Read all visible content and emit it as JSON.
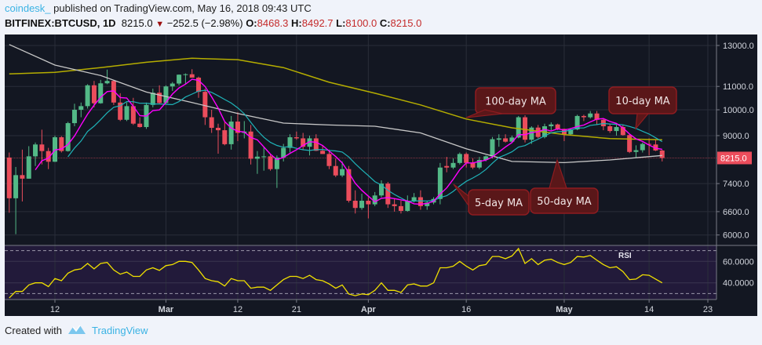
{
  "header": {
    "user": "coindesk_",
    "published": "published on TradingView.com, May 16, 2018 09:43 UTC",
    "symbol": "BITFINEX:BTCUSD, 1D",
    "last": "8215.0",
    "change": "−252.5 (−2.98%)",
    "o_label": "O:",
    "o": "8468.3",
    "h_label": "H:",
    "h": "8492.7",
    "l_label": "L:",
    "l": "8100.0",
    "c_label": "C:",
    "c": "8215.0"
  },
  "footer": {
    "created_with": "Created with",
    "brand": "TradingView",
    "logo_icon": "tradingview-logo-icon"
  },
  "colors": {
    "background": "#131722",
    "grid": "#2a2e39",
    "up": "#53b987",
    "down": "#eb4d5c",
    "ma5": "#ff00ff",
    "ma10": "#1fb3b8",
    "ma50": "#c8c8c8",
    "ma100": "#b5ad00",
    "rsi_line": "#f0e000",
    "rsi_band": "#221a3a",
    "callout_fill": "#5a1719",
    "callout_border": "#8e1c20",
    "last_price": "#eb4d5c"
  },
  "chart_data": [
    {
      "type": "candlestick",
      "scale": "log",
      "ylim": [
        5700,
        13600
      ],
      "y_ticks": [
        "13000.0",
        "11000.0",
        "10000.0",
        "9000.0",
        "7400.0",
        "6600.0",
        "6000.0"
      ],
      "y_tick_values": [
        13000,
        11000,
        10000,
        9000,
        7400,
        6600,
        6000
      ],
      "x_ticks": [
        {
          "label": "12",
          "date": "2018-02-12",
          "bold": false
        },
        {
          "label": "Mar",
          "date": "2018-03-01",
          "bold": true
        },
        {
          "label": "12",
          "date": "2018-03-12",
          "bold": false
        },
        {
          "label": "21",
          "date": "2018-03-21",
          "bold": false
        },
        {
          "label": "Apr",
          "date": "2018-04-01",
          "bold": true
        },
        {
          "label": "16",
          "date": "2018-04-16",
          "bold": false
        },
        {
          "label": "May",
          "date": "2018-05-01",
          "bold": true
        },
        {
          "label": "14",
          "date": "2018-05-14",
          "bold": false
        },
        {
          "label": "23",
          "date": "2018-05-23",
          "bold": false
        }
      ],
      "grid": true,
      "last_price": 8215.0,
      "last_price_label": "8215.0",
      "candles_fields": [
        "date",
        "open",
        "high",
        "low",
        "close"
      ],
      "candles": [
        [
          "2018-02-05",
          8230,
          8400,
          6570,
          6970
        ],
        [
          "2018-02-06",
          6970,
          7920,
          6020,
          7660
        ],
        [
          "2018-02-07",
          7660,
          8500,
          6880,
          7550
        ],
        [
          "2018-02-08",
          7550,
          8620,
          7550,
          8270
        ],
        [
          "2018-02-09",
          8270,
          8750,
          7950,
          8680
        ],
        [
          "2018-02-10",
          8680,
          9220,
          8000,
          8450
        ],
        [
          "2018-02-11",
          8450,
          8560,
          7850,
          8090
        ],
        [
          "2018-02-12",
          8090,
          9000,
          8080,
          8940
        ],
        [
          "2018-02-13",
          8940,
          8980,
          8400,
          8450
        ],
        [
          "2018-02-14",
          8450,
          9520,
          8430,
          9470
        ],
        [
          "2018-02-15",
          9470,
          10250,
          9350,
          10000
        ],
        [
          "2018-02-16",
          10000,
          10300,
          9700,
          10150
        ],
        [
          "2018-02-17",
          10150,
          11100,
          10050,
          11050
        ],
        [
          "2018-02-18",
          11050,
          11250,
          10100,
          10270
        ],
        [
          "2018-02-19",
          10270,
          11300,
          10250,
          11140
        ],
        [
          "2018-02-20",
          11140,
          11780,
          11100,
          11250
        ],
        [
          "2018-02-21",
          11250,
          11300,
          10200,
          10300
        ],
        [
          "2018-02-22",
          10300,
          10700,
          9550,
          9600
        ],
        [
          "2018-02-23",
          9600,
          10300,
          9550,
          10150
        ],
        [
          "2018-02-24",
          10150,
          10500,
          9400,
          9450
        ],
        [
          "2018-02-25",
          9450,
          9700,
          9300,
          9320
        ],
        [
          "2018-02-26",
          9320,
          10300,
          9250,
          10200
        ],
        [
          "2018-02-27",
          10200,
          10900,
          10100,
          10720
        ],
        [
          "2018-02-28",
          10720,
          11050,
          10250,
          10280
        ],
        [
          "2018-03-01",
          10280,
          11050,
          10250,
          11000
        ],
        [
          "2018-03-02",
          11000,
          11200,
          10800,
          11130
        ],
        [
          "2018-03-03",
          11130,
          11550,
          11050,
          11540
        ],
        [
          "2018-03-04",
          11540,
          11600,
          11100,
          11560
        ],
        [
          "2018-03-05",
          11560,
          11800,
          11400,
          11400
        ],
        [
          "2018-03-06",
          11400,
          11450,
          10500,
          10760
        ],
        [
          "2018-03-07",
          10760,
          10900,
          9400,
          9700
        ],
        [
          "2018-03-08",
          9700,
          10000,
          9100,
          9290
        ],
        [
          "2018-03-09",
          9290,
          9450,
          8360,
          9200
        ],
        [
          "2018-03-10",
          9200,
          9500,
          8650,
          8690
        ],
        [
          "2018-03-11",
          8690,
          9750,
          8500,
          9530
        ],
        [
          "2018-03-12",
          9530,
          9900,
          8800,
          9100
        ],
        [
          "2018-03-13",
          9100,
          9550,
          8900,
          9150
        ],
        [
          "2018-03-14",
          9150,
          9400,
          8000,
          8190
        ],
        [
          "2018-03-15",
          8190,
          8450,
          7700,
          8260
        ],
        [
          "2018-03-16",
          8260,
          8600,
          7800,
          8270
        ],
        [
          "2018-03-17",
          8270,
          8350,
          7800,
          7850
        ],
        [
          "2018-03-18",
          7850,
          8300,
          7270,
          8230
        ],
        [
          "2018-03-19",
          8230,
          8700,
          8100,
          8560
        ],
        [
          "2018-03-20",
          8560,
          9050,
          8400,
          8940
        ],
        [
          "2018-03-21",
          8940,
          9150,
          8850,
          8900
        ],
        [
          "2018-03-22",
          8900,
          9100,
          8500,
          8600
        ],
        [
          "2018-03-23",
          8600,
          9000,
          8300,
          8900
        ],
        [
          "2018-03-24",
          8900,
          9050,
          8450,
          8460
        ],
        [
          "2018-03-25",
          8460,
          8650,
          8350,
          8350
        ],
        [
          "2018-03-26",
          8350,
          8500,
          7850,
          7950
        ],
        [
          "2018-03-27",
          7950,
          8200,
          7600,
          7650
        ],
        [
          "2018-03-28",
          7650,
          8100,
          7600,
          7850
        ],
        [
          "2018-03-29",
          7850,
          7950,
          6850,
          6900
        ],
        [
          "2018-03-30",
          6900,
          7200,
          6550,
          6700
        ],
        [
          "2018-03-31",
          6700,
          7100,
          6650,
          6900
        ],
        [
          "2018-04-01",
          6900,
          7000,
          6420,
          6800
        ],
        [
          "2018-04-02",
          6800,
          7150,
          6750,
          7050
        ],
        [
          "2018-04-03",
          7050,
          7500,
          7000,
          7400
        ],
        [
          "2018-04-04",
          7400,
          7450,
          6700,
          6800
        ],
        [
          "2018-04-05",
          6800,
          6950,
          6600,
          6750
        ],
        [
          "2018-04-06",
          6750,
          6900,
          6550,
          6620
        ],
        [
          "2018-04-07",
          6620,
          7050,
          6600,
          6900
        ],
        [
          "2018-04-08",
          6900,
          7120,
          6850,
          7000
        ],
        [
          "2018-04-09",
          7000,
          7200,
          6650,
          6750
        ],
        [
          "2018-04-10",
          6750,
          6900,
          6650,
          6850
        ],
        [
          "2018-04-11",
          6850,
          7000,
          6800,
          6950
        ],
        [
          "2018-04-12",
          6950,
          8050,
          6800,
          7900
        ],
        [
          "2018-04-13",
          7950,
          8250,
          7750,
          7900
        ],
        [
          "2018-04-14",
          7900,
          8200,
          7850,
          8050
        ],
        [
          "2018-04-15",
          8050,
          8400,
          8000,
          8350
        ],
        [
          "2018-04-16",
          8350,
          8400,
          7900,
          8050
        ],
        [
          "2018-04-17",
          8050,
          8200,
          7850,
          7900
        ],
        [
          "2018-04-18",
          7900,
          8250,
          7850,
          8150
        ],
        [
          "2018-04-19",
          8150,
          8300,
          8100,
          8270
        ],
        [
          "2018-04-20",
          8270,
          8950,
          8200,
          8870
        ],
        [
          "2018-04-21",
          8850,
          9050,
          8600,
          8900
        ],
        [
          "2018-04-22",
          8900,
          9050,
          8750,
          8780
        ],
        [
          "2018-04-23",
          8780,
          9000,
          8750,
          8930
        ],
        [
          "2018-04-24",
          8930,
          9750,
          8900,
          9700
        ],
        [
          "2018-04-25",
          9700,
          9780,
          8750,
          8850
        ],
        [
          "2018-04-26",
          8850,
          9350,
          8700,
          9300
        ],
        [
          "2018-04-27",
          9300,
          9400,
          8900,
          8950
        ],
        [
          "2018-04-28",
          8950,
          9450,
          8900,
          9350
        ],
        [
          "2018-04-29",
          9350,
          9500,
          9200,
          9420
        ],
        [
          "2018-04-30",
          9420,
          9450,
          9200,
          9250
        ],
        [
          "2018-05-01",
          9250,
          9260,
          8800,
          9050
        ],
        [
          "2018-05-02",
          9050,
          9250,
          9000,
          9230
        ],
        [
          "2018-05-03",
          9230,
          9800,
          9200,
          9750
        ],
        [
          "2018-05-04",
          9750,
          9800,
          9550,
          9700
        ],
        [
          "2018-05-05",
          9700,
          9950,
          9650,
          9850
        ],
        [
          "2018-05-06",
          9850,
          9950,
          9400,
          9600
        ],
        [
          "2018-05-07",
          9600,
          9650,
          9200,
          9350
        ],
        [
          "2018-05-08",
          9350,
          9450,
          9100,
          9170
        ],
        [
          "2018-05-09",
          9170,
          9400,
          9000,
          9320
        ],
        [
          "2018-05-10",
          9320,
          9400,
          9000,
          9020
        ],
        [
          "2018-05-11",
          9020,
          9050,
          8380,
          8420
        ],
        [
          "2018-05-12",
          8420,
          8650,
          8220,
          8480
        ],
        [
          "2018-05-13",
          8480,
          8750,
          8400,
          8700
        ],
        [
          "2018-05-14",
          8700,
          8900,
          8300,
          8680
        ],
        [
          "2018-05-15",
          8680,
          8850,
          8450,
          8470
        ],
        [
          "2018-05-16",
          8468.3,
          8492.7,
          8100,
          8215
        ]
      ],
      "moving_averages": {
        "ma5": {
          "period": 5
        },
        "ma10": {
          "period": 10
        },
        "ma50": {
          "period": 50,
          "points": [
            [
              "2018-02-05",
              13050
            ],
            [
              "2018-02-12",
              12000
            ],
            [
              "2018-02-19",
              11500
            ],
            [
              "2018-02-26",
              10750
            ],
            [
              "2018-03-05",
              10300
            ],
            [
              "2018-03-12",
              9850
            ],
            [
              "2018-03-19",
              9470
            ],
            [
              "2018-03-26",
              9400
            ],
            [
              "2018-04-02",
              9350
            ],
            [
              "2018-04-09",
              9100
            ],
            [
              "2018-04-16",
              8530
            ],
            [
              "2018-04-23",
              8100
            ],
            [
              "2018-05-01",
              8060
            ],
            [
              "2018-05-08",
              8150
            ],
            [
              "2018-05-16",
              8300
            ]
          ]
        },
        "ma100": {
          "period": 100,
          "points": [
            [
              "2018-02-05",
              11580
            ],
            [
              "2018-02-12",
              11650
            ],
            [
              "2018-02-19",
              11880
            ],
            [
              "2018-02-26",
              12140
            ],
            [
              "2018-03-05",
              12340
            ],
            [
              "2018-03-12",
              12270
            ],
            [
              "2018-03-19",
              11880
            ],
            [
              "2018-03-26",
              11190
            ],
            [
              "2018-04-02",
              10700
            ],
            [
              "2018-04-09",
              10200
            ],
            [
              "2018-04-16",
              9630
            ],
            [
              "2018-04-23",
              9290
            ],
            [
              "2018-05-01",
              9040
            ],
            [
              "2018-05-08",
              8890
            ],
            [
              "2018-05-16",
              8850
            ]
          ]
        }
      },
      "annotations": [
        {
          "text": "100-day MA",
          "target": "ma100"
        },
        {
          "text": "10-day MA",
          "target": "ma10"
        },
        {
          "text": "5-day MA",
          "target": "ma5"
        },
        {
          "text": "50-day MA",
          "target": "ma50"
        }
      ]
    },
    {
      "type": "line",
      "title": "RSI",
      "ylim": [
        26,
        74
      ],
      "y_ticks": [
        "60.0000",
        "40.0000"
      ],
      "y_tick_values": [
        60,
        40
      ],
      "band": [
        30,
        70
      ],
      "start": "2018-02-05",
      "end": "2018-05-16",
      "values": [
        26,
        32,
        32,
        38,
        40,
        40,
        36.5,
        44,
        42,
        49,
        52,
        53,
        58,
        53,
        58,
        59,
        52,
        48,
        50,
        46,
        46,
        52,
        54,
        51.5,
        56,
        57,
        60,
        60,
        59,
        52,
        44,
        42,
        41,
        37,
        44,
        42,
        42,
        35,
        36,
        36,
        33,
        38,
        43,
        46,
        46,
        44,
        47,
        43,
        42,
        39,
        35,
        38,
        29.6,
        28,
        29.6,
        29,
        33,
        40,
        33,
        33,
        31,
        38,
        39,
        37,
        37,
        40,
        54,
        54,
        55.5,
        60,
        55.5,
        52,
        56,
        57,
        64.5,
        64.5,
        62.5,
        65,
        72,
        58,
        62.5,
        57,
        61,
        62,
        59,
        57,
        59,
        64.5,
        64,
        65.5,
        61,
        57,
        54,
        55,
        50.5,
        43,
        43.5,
        47.5,
        47,
        43.5,
        40
      ]
    }
  ]
}
